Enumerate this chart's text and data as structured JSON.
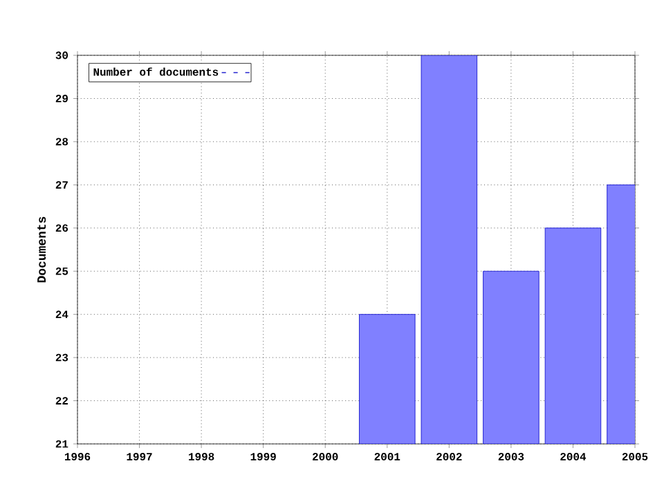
{
  "chart_data": {
    "type": "bar",
    "ylabel": "Documents",
    "x": [
      2001,
      2002,
      2003,
      2004,
      2005
    ],
    "series": [
      {
        "name": "Number of documents",
        "color": "#8080ff",
        "values": [
          24,
          30,
          25,
          26,
          27
        ]
      }
    ],
    "xlim": [
      1996,
      2005
    ],
    "xticks": [
      1996,
      1997,
      1998,
      1999,
      2000,
      2001,
      2002,
      2003,
      2004,
      2005
    ],
    "ylim": [
      21,
      30
    ],
    "yticks": [
      21,
      22,
      23,
      24,
      25,
      26,
      27,
      28,
      29,
      30
    ],
    "grid": true,
    "legend": "top left"
  }
}
